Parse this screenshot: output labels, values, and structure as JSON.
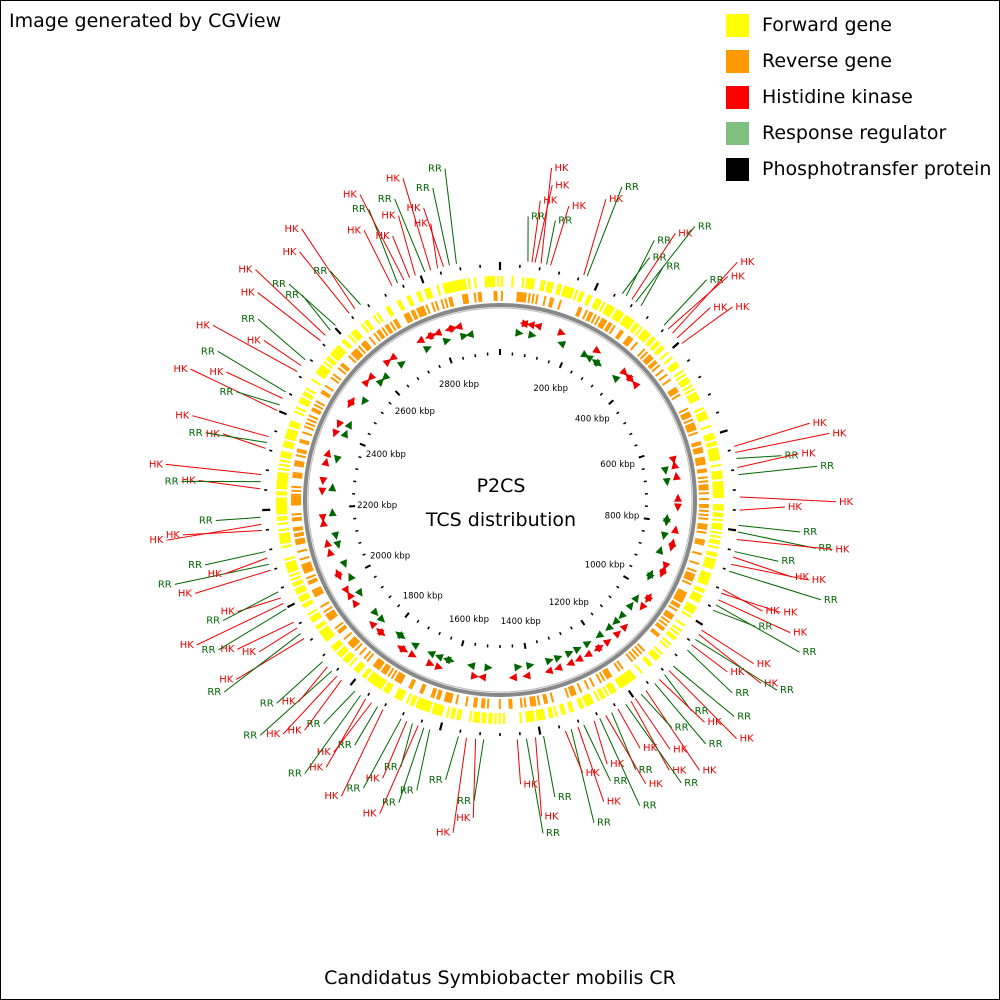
{
  "credit": "Image generated by CGView",
  "title": "P2CS",
  "subtitle": "TCS distribution",
  "caption": "Candidatus Symbiobacter mobilis CR",
  "legend": [
    {
      "label": "Forward gene",
      "color": "#ffff00"
    },
    {
      "label": "Reverse gene",
      "color": "#ff9900"
    },
    {
      "label": "Histidine kinase",
      "color": "#ff0000"
    },
    {
      "label": "Response regulator",
      "color": "#7fbf7f"
    },
    {
      "label": "Phosphotransfer protein",
      "color": "#000000"
    }
  ],
  "genome": {
    "length_kbp": 2960,
    "tick_labels": [
      "200 kbp",
      "400 kbp",
      "600 kbp",
      "800 kbp",
      "1000 kbp",
      "1200 kbp",
      "1400 kbp",
      "1600 kbp",
      "1800 kbp",
      "2000 kbp",
      "2200 kbp",
      "2400 kbp",
      "2600 kbp",
      "2800 kbp"
    ]
  },
  "colors": {
    "hk": "#ee0000",
    "rr": "#006600",
    "forward": "#ffff00",
    "reverse": "#ff9900",
    "backbone": "#888888",
    "tick": "#000000"
  },
  "features": [
    {
      "t": "RR",
      "kbp": 55
    },
    {
      "t": "HK",
      "kbp": 63
    },
    {
      "t": "HK",
      "kbp": 69
    },
    {
      "t": "HK",
      "kbp": 81
    },
    {
      "t": "RR",
      "kbp": 92
    },
    {
      "t": "HK",
      "kbp": 100
    },
    {
      "t": "HK",
      "kbp": 168
    },
    {
      "t": "RR",
      "kbp": 175
    },
    {
      "t": "RR",
      "kbp": 252
    },
    {
      "t": "RR",
      "kbp": 261
    },
    {
      "t": "HK",
      "kbp": 274
    },
    {
      "t": "RR",
      "kbp": 283
    },
    {
      "t": "RR",
      "kbp": 296
    },
    {
      "t": "RR",
      "kbp": 355
    },
    {
      "t": "HK",
      "kbp": 366
    },
    {
      "t": "HK",
      "kbp": 378
    },
    {
      "t": "HK",
      "kbp": 391
    },
    {
      "t": "HK",
      "kbp": 405
    },
    {
      "t": "HK",
      "kbp": 634
    },
    {
      "t": "HK",
      "kbp": 646
    },
    {
      "t": "RR",
      "kbp": 658
    },
    {
      "t": "HK",
      "kbp": 676
    },
    {
      "t": "RR",
      "kbp": 690
    },
    {
      "t": "HK",
      "kbp": 734
    },
    {
      "t": "HK",
      "kbp": 760
    },
    {
      "t": "RR",
      "kbp": 790
    },
    {
      "t": "RR",
      "kbp": 803
    },
    {
      "t": "HK",
      "kbp": 818
    },
    {
      "t": "RR",
      "kbp": 842
    },
    {
      "t": "HK",
      "kbp": 853
    },
    {
      "t": "HK",
      "kbp": 868
    },
    {
      "t": "RR",
      "kbp": 882
    },
    {
      "t": "HK",
      "kbp": 920
    },
    {
      "t": "HK",
      "kbp": 928
    },
    {
      "t": "HK",
      "kbp": 942
    },
    {
      "t": "RR",
      "kbp": 953
    },
    {
      "t": "RR",
      "kbp": 965
    },
    {
      "t": "HK",
      "kbp": 1010
    },
    {
      "t": "HK",
      "kbp": 1020
    },
    {
      "t": "RR",
      "kbp": 1032
    },
    {
      "t": "HK",
      "kbp": 1045
    },
    {
      "t": "RR",
      "kbp": 1058
    },
    {
      "t": "RR",
      "kbp": 1100
    },
    {
      "t": "HK",
      "kbp": 1112
    },
    {
      "t": "RR",
      "kbp": 1124
    },
    {
      "t": "HK",
      "kbp": 1138
    },
    {
      "t": "RR",
      "kbp": 1150
    },
    {
      "t": "HK",
      "kbp": 1172
    },
    {
      "t": "RR",
      "kbp": 1184
    },
    {
      "t": "HK",
      "kbp": 1198
    },
    {
      "t": "HK",
      "kbp": 1208
    },
    {
      "t": "RR",
      "kbp": 1220
    },
    {
      "t": "HK",
      "kbp": 1238
    },
    {
      "t": "RR",
      "kbp": 1252
    },
    {
      "t": "HK",
      "kbp": 1265
    },
    {
      "t": "RR",
      "kbp": 1278
    },
    {
      "t": "HK",
      "kbp": 1290
    },
    {
      "t": "RR",
      "kbp": 1312
    },
    {
      "t": "HK",
      "kbp": 1324
    },
    {
      "t": "RR",
      "kbp": 1338
    },
    {
      "t": "HK",
      "kbp": 1350
    },
    {
      "t": "RR",
      "kbp": 1394
    },
    {
      "t": "HK",
      "kbp": 1410
    },
    {
      "t": "RR",
      "kbp": 1428
    },
    {
      "t": "HK",
      "kbp": 1446
    },
    {
      "t": "RR",
      "kbp": 1512
    },
    {
      "t": "HK",
      "kbp": 1528
    },
    {
      "t": "HK",
      "kbp": 1546
    },
    {
      "t": "RR",
      "kbp": 1562
    },
    {
      "t": "RR",
      "kbp": 1620
    },
    {
      "t": "RR",
      "kbp": 1632
    },
    {
      "t": "HK",
      "kbp": 1644
    },
    {
      "t": "RR",
      "kbp": 1656
    },
    {
      "t": "HK",
      "kbp": 1668
    },
    {
      "t": "RR",
      "kbp": 1680
    },
    {
      "t": "HK",
      "kbp": 1720
    },
    {
      "t": "RR",
      "kbp": 1732
    },
    {
      "t": "HK",
      "kbp": 1746
    },
    {
      "t": "HK",
      "kbp": 1760
    },
    {
      "t": "RR",
      "kbp": 1772
    },
    {
      "t": "RR",
      "kbp": 1786
    },
    {
      "t": "HK",
      "kbp": 1820
    },
    {
      "t": "HK",
      "kbp": 1832
    },
    {
      "t": "RR",
      "kbp": 1846
    },
    {
      "t": "HK",
      "kbp": 1858
    },
    {
      "t": "RR",
      "kbp": 1872
    },
    {
      "t": "HK",
      "kbp": 1930
    },
    {
      "t": "RR",
      "kbp": 1942
    },
    {
      "t": "HK",
      "kbp": 1955
    },
    {
      "t": "HK",
      "kbp": 1968
    },
    {
      "t": "RR",
      "kbp": 1998
    },
    {
      "t": "HK",
      "kbp": 2010
    },
    {
      "t": "HK",
      "kbp": 2022
    },
    {
      "t": "RR",
      "kbp": 2035
    },
    {
      "t": "HK",
      "kbp": 2080
    },
    {
      "t": "RR",
      "kbp": 2092
    },
    {
      "t": "HK",
      "kbp": 2105
    },
    {
      "t": "RR",
      "kbp": 2118
    },
    {
      "t": "HK",
      "kbp": 2160
    },
    {
      "t": "HK",
      "kbp": 2172
    },
    {
      "t": "RR",
      "kbp": 2186
    },
    {
      "t": "HK",
      "kbp": 2242
    },
    {
      "t": "RR",
      "kbp": 2256
    },
    {
      "t": "HK",
      "kbp": 2270
    },
    {
      "t": "HK",
      "kbp": 2322
    },
    {
      "t": "RR",
      "kbp": 2334
    },
    {
      "t": "HK",
      "kbp": 2346
    },
    {
      "t": "HK",
      "kbp": 2400
    },
    {
      "t": "RR",
      "kbp": 2412
    },
    {
      "t": "HK",
      "kbp": 2426
    },
    {
      "t": "RR",
      "kbp": 2440
    },
    {
      "t": "HK",
      "kbp": 2486
    },
    {
      "t": "HK",
      "kbp": 2500
    },
    {
      "t": "RR",
      "kbp": 2514
    },
    {
      "t": "HK",
      "kbp": 2562
    },
    {
      "t": "HK",
      "kbp": 2576
    },
    {
      "t": "RR",
      "kbp": 2590
    },
    {
      "t": "RR",
      "kbp": 2604
    },
    {
      "t": "HK",
      "kbp": 2640
    },
    {
      "t": "HK",
      "kbp": 2654
    },
    {
      "t": "RR",
      "kbp": 2668
    },
    {
      "t": "HK",
      "kbp": 2740
    },
    {
      "t": "RR",
      "kbp": 2752
    },
    {
      "t": "HK",
      "kbp": 2766
    },
    {
      "t": "HK",
      "kbp": 2778
    },
    {
      "t": "HK",
      "kbp": 2790
    },
    {
      "t": "RR",
      "kbp": 2810
    },
    {
      "t": "HK",
      "kbp": 2822
    },
    {
      "t": "HK",
      "kbp": 2836
    },
    {
      "t": "HK",
      "kbp": 2848
    },
    {
      "t": "RR",
      "kbp": 2860
    },
    {
      "t": "RR",
      "kbp": 2874
    }
  ]
}
